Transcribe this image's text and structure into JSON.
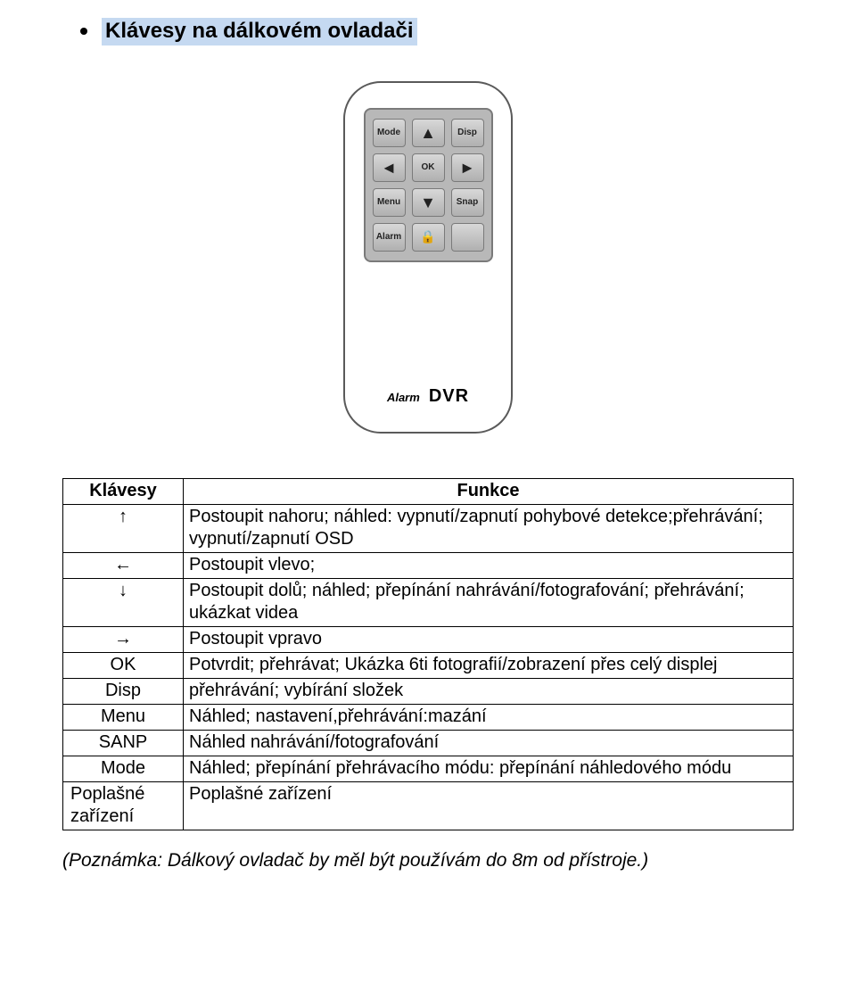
{
  "heading": "Klávesy na dálkovém ovladači",
  "remote": {
    "keys": {
      "mode": "Mode",
      "up": "▲",
      "disp": "Disp",
      "left": "◄",
      "ok": "OK",
      "right": "►",
      "menu": "Menu",
      "down": "▼",
      "snap": "Snap",
      "alarm": "Alarm",
      "lock": "🔒",
      "blank": ""
    },
    "label_alarm": "Alarm",
    "label_dvr": "DVR"
  },
  "table": {
    "header_keys": "Klávesy",
    "header_func": "Funkce",
    "rows": [
      {
        "key": "↑",
        "keyclass": "center",
        "func": "Postoupit nahoru; náhled: vypnutí/zapnutí pohybové detekce;přehrávání; vypnutí/zapnutí OSD"
      },
      {
        "key": "←",
        "keyclass": "center",
        "func": "Postoupit vlevo;"
      },
      {
        "key": "↓",
        "keyclass": "center",
        "func": "Postoupit dolů; náhled; přepínání nahrávání/fotografování; přehrávání; ukázkat videa"
      },
      {
        "key": "→",
        "keyclass": "center",
        "func": "Postoupit vpravo"
      },
      {
        "key": "OK",
        "keyclass": "center",
        "func": "Potvrdit; přehrávat; Ukázka 6ti fotografií/zobrazení přes celý displej"
      },
      {
        "key": "Disp",
        "keyclass": "center",
        "func": "přehrávání; vybírání složek"
      },
      {
        "key": "Menu",
        "keyclass": "center",
        "func": "Náhled; nastavení,přehrávání:mazání"
      },
      {
        "key": "SANP",
        "keyclass": "center",
        "func": "Náhled nahrávání/fotografování"
      },
      {
        "key": "Mode",
        "keyclass": "center",
        "func": "Náhled; přepínání přehrávacího módu: přepínání náhledového módu"
      },
      {
        "key": "Poplašné zařízení",
        "keyclass": "left",
        "func": "Poplašné zařízení"
      }
    ]
  },
  "note": "(Poznámka: Dálkový ovladač by měl být používám do 8m od přístroje.)"
}
